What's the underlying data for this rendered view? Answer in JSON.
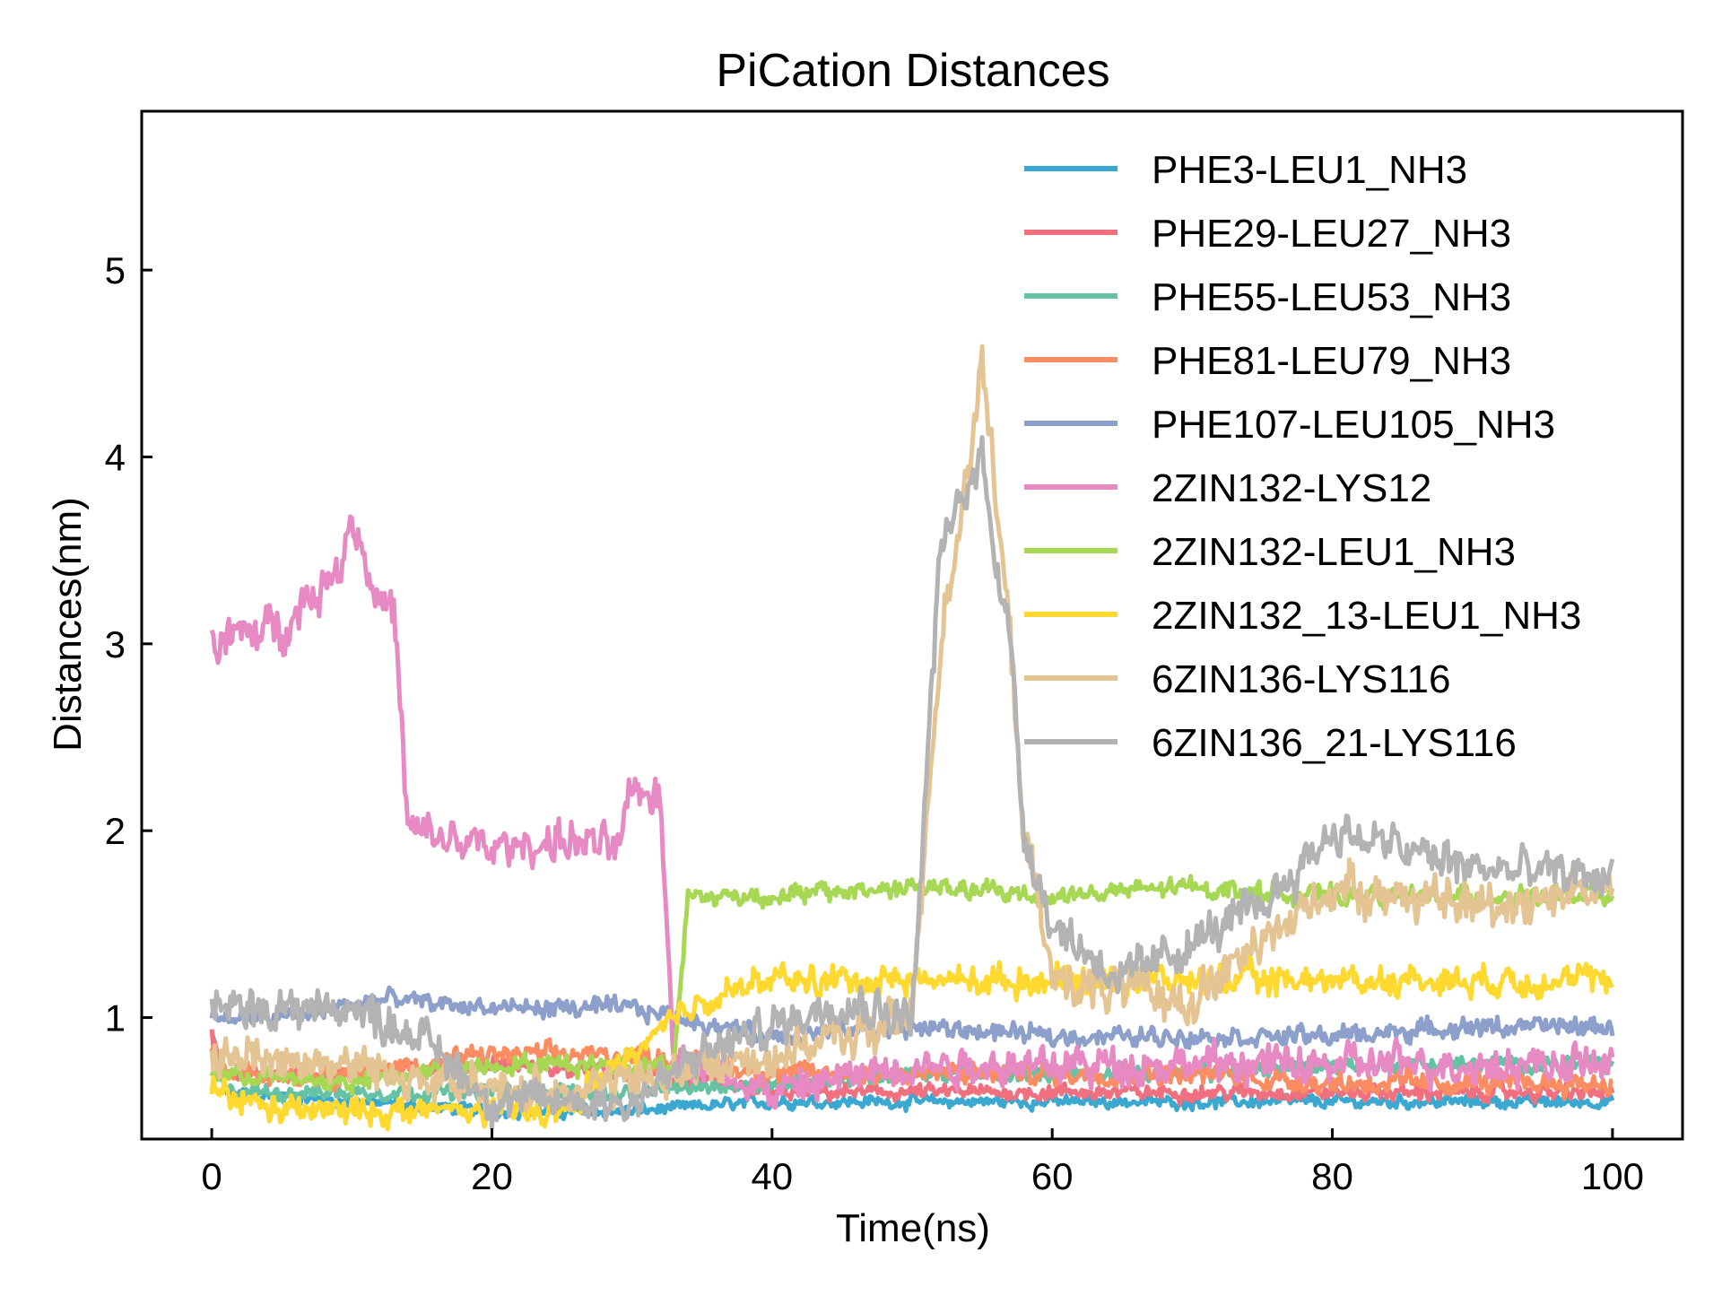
{
  "chart_data": {
    "type": "line",
    "title": "PiCation Distances",
    "xlabel": "Time(ns)",
    "ylabel": "Distances(nm)",
    "xlim": [
      -5,
      105
    ],
    "ylim": [
      0.35,
      5.85
    ],
    "xticks": [
      0,
      20,
      40,
      60,
      80,
      100
    ],
    "yticks": [
      1,
      2,
      3,
      4,
      5
    ],
    "xtick_labels": [
      "0",
      "20",
      "40",
      "60",
      "80",
      "100"
    ],
    "ytick_labels": [
      "1",
      "2",
      "3",
      "4",
      "5"
    ],
    "grid": false,
    "legend_position": "top-right",
    "series": [
      {
        "name": "PHE3-LEU1_NH3",
        "color": "#3aa8d1",
        "noise": 0.04,
        "keypoints": [
          [
            0,
            0.9
          ],
          [
            1,
            0.6
          ],
          [
            10,
            0.55
          ],
          [
            20,
            0.5
          ],
          [
            30,
            0.5
          ],
          [
            40,
            0.55
          ],
          [
            50,
            0.55
          ],
          [
            60,
            0.55
          ],
          [
            70,
            0.55
          ],
          [
            80,
            0.55
          ],
          [
            90,
            0.55
          ],
          [
            100,
            0.55
          ]
        ]
      },
      {
        "name": "PHE29-LEU27_NH3",
        "color": "#f07080",
        "noise": 0.05,
        "keypoints": [
          [
            0,
            0.9
          ],
          [
            1,
            0.7
          ],
          [
            10,
            0.7
          ],
          [
            20,
            0.75
          ],
          [
            30,
            0.7
          ],
          [
            40,
            0.6
          ],
          [
            50,
            0.6
          ],
          [
            60,
            0.6
          ],
          [
            70,
            0.6
          ],
          [
            80,
            0.6
          ],
          [
            90,
            0.6
          ],
          [
            100,
            0.6
          ]
        ]
      },
      {
        "name": "PHE55-LEU53_NH3",
        "color": "#66c2a5",
        "noise": 0.05,
        "keypoints": [
          [
            0,
            0.8
          ],
          [
            1,
            0.6
          ],
          [
            10,
            0.6
          ],
          [
            20,
            0.6
          ],
          [
            30,
            0.6
          ],
          [
            40,
            0.65
          ],
          [
            50,
            0.7
          ],
          [
            60,
            0.7
          ],
          [
            70,
            0.7
          ],
          [
            80,
            0.75
          ],
          [
            90,
            0.75
          ],
          [
            100,
            0.75
          ]
        ]
      },
      {
        "name": "PHE81-LEU79_NH3",
        "color": "#fc8d62",
        "noise": 0.07,
        "keypoints": [
          [
            0,
            0.8
          ],
          [
            1,
            0.7
          ],
          [
            10,
            0.7
          ],
          [
            20,
            0.8
          ],
          [
            30,
            0.8
          ],
          [
            40,
            0.7
          ],
          [
            50,
            0.7
          ],
          [
            60,
            0.7
          ],
          [
            70,
            0.7
          ],
          [
            80,
            0.65
          ],
          [
            90,
            0.65
          ],
          [
            100,
            0.65
          ]
        ]
      },
      {
        "name": "PHE107-LEU105_NH3",
        "color": "#8da0cb",
        "noise": 0.06,
        "keypoints": [
          [
            0,
            1.0
          ],
          [
            5,
            1.0
          ],
          [
            12,
            1.1
          ],
          [
            20,
            1.05
          ],
          [
            30,
            1.05
          ],
          [
            40,
            0.9
          ],
          [
            50,
            0.95
          ],
          [
            60,
            0.9
          ],
          [
            70,
            0.9
          ],
          [
            80,
            0.9
          ],
          [
            90,
            0.95
          ],
          [
            100,
            0.95
          ]
        ]
      },
      {
        "name": "2ZIN132-LYS12",
        "color": "#e78ac3",
        "noise": 0.12,
        "keypoints": [
          [
            0,
            3.0
          ],
          [
            5,
            3.1
          ],
          [
            9,
            3.4
          ],
          [
            10,
            3.7
          ],
          [
            12,
            3.2
          ],
          [
            13,
            3.2
          ],
          [
            14,
            2.0
          ],
          [
            20,
            1.9
          ],
          [
            25,
            1.95
          ],
          [
            29,
            1.9
          ],
          [
            30,
            2.2
          ],
          [
            32,
            2.2
          ],
          [
            33,
            0.8
          ],
          [
            40,
            0.6
          ],
          [
            50,
            0.75
          ],
          [
            60,
            0.75
          ],
          [
            70,
            0.75
          ],
          [
            80,
            0.75
          ],
          [
            90,
            0.75
          ],
          [
            100,
            0.75
          ]
        ]
      },
      {
        "name": "2ZIN132-LEU1_NH3",
        "color": "#a6d854",
        "noise": 0.06,
        "keypoints": [
          [
            0,
            0.7
          ],
          [
            10,
            0.65
          ],
          [
            20,
            0.75
          ],
          [
            30,
            0.75
          ],
          [
            33,
            0.75
          ],
          [
            34,
            1.65
          ],
          [
            40,
            1.65
          ],
          [
            50,
            1.7
          ],
          [
            60,
            1.65
          ],
          [
            70,
            1.7
          ],
          [
            80,
            1.65
          ],
          [
            90,
            1.65
          ],
          [
            100,
            1.65
          ]
        ]
      },
      {
        "name": "2ZIN132_13-LEU1_NH3",
        "color": "#ffd92f",
        "noise": 0.09,
        "keypoints": [
          [
            0,
            0.6
          ],
          [
            5,
            0.5
          ],
          [
            15,
            0.5
          ],
          [
            20,
            0.5
          ],
          [
            25,
            0.5
          ],
          [
            30,
            0.8
          ],
          [
            35,
            1.1
          ],
          [
            40,
            1.2
          ],
          [
            50,
            1.2
          ],
          [
            60,
            1.2
          ],
          [
            70,
            1.2
          ],
          [
            80,
            1.2
          ],
          [
            90,
            1.2
          ],
          [
            100,
            1.2
          ]
        ]
      },
      {
        "name": "6ZIN136-LYS116",
        "color": "#e5c494",
        "noise": 0.14,
        "keypoints": [
          [
            0,
            0.8
          ],
          [
            10,
            0.75
          ],
          [
            20,
            0.6
          ],
          [
            30,
            0.65
          ],
          [
            40,
            0.8
          ],
          [
            50,
            1.0
          ],
          [
            52,
            3.0
          ],
          [
            55,
            4.5
          ],
          [
            57,
            3.0
          ],
          [
            58,
            2.0
          ],
          [
            60,
            1.2
          ],
          [
            70,
            1.1
          ],
          [
            80,
            1.7
          ],
          [
            90,
            1.6
          ],
          [
            100,
            1.7
          ]
        ]
      },
      {
        "name": "6ZIN136_21-LYS116",
        "color": "#b3b3b3",
        "noise": 0.13,
        "keypoints": [
          [
            0,
            1.05
          ],
          [
            10,
            1.05
          ],
          [
            15,
            0.9
          ],
          [
            20,
            0.55
          ],
          [
            30,
            0.55
          ],
          [
            35,
            0.8
          ],
          [
            40,
            0.95
          ],
          [
            45,
            1.1
          ],
          [
            50,
            1.0
          ],
          [
            52,
            3.5
          ],
          [
            55,
            4.0
          ],
          [
            57,
            3.0
          ],
          [
            58,
            2.0
          ],
          [
            60,
            1.5
          ],
          [
            65,
            1.2
          ],
          [
            70,
            1.4
          ],
          [
            75,
            1.6
          ],
          [
            80,
            2.0
          ],
          [
            90,
            1.8
          ],
          [
            100,
            1.75
          ]
        ]
      }
    ]
  }
}
